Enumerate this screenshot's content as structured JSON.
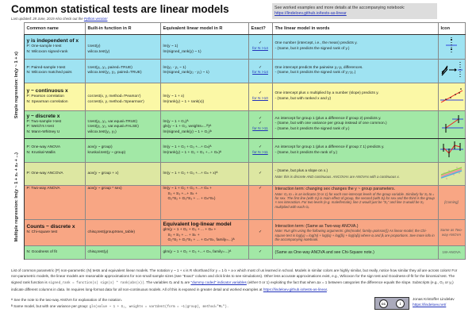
{
  "header": {
    "title": "Common statistical tests are linear models",
    "updated": "Last updated: 28 June, 2019 Also check out the ",
    "python_link": "Python version!"
  },
  "notice": {
    "text": "See worked examples and more details at the accompanying notebook: ",
    "link": "https://lindeloev.github.io/tests-as-linear"
  },
  "columns": [
    "Common name",
    "Built-in function in R",
    "Equivalent linear model in R",
    "Exact?",
    "The linear model in words",
    "Icon"
  ],
  "side_labels": {
    "simple": "Simple regression: lm(y ~ 1 + x)",
    "multiple": "Multiple regression: lm(y ~ 1 + x₁ + x₂ + ...)"
  },
  "rows": [
    {
      "heading": "y is independent of x",
      "names": [
        "P: One-sample t-test",
        "N: Wilcoxon signed-rank"
      ],
      "builtin": [
        "t.test(y)",
        "wilcox.test(y)"
      ],
      "model": [
        "lm(y ~ 1)",
        "lm(signed_rank(y) ~ 1)"
      ],
      "exact": [
        "✓",
        "for N >14"
      ],
      "words": [
        "One number (intercept, i.e., the mean) predicts y.",
        "- (Same, but it predicts the signed rank of y.)"
      ]
    },
    {
      "names": [
        "P: Paired-sample t-test",
        "N: Wilcoxon matched pairs"
      ],
      "builtin": [
        "t.test(y₁, y₂, paired=TRUE)",
        "wilcox.test(y₁, y₂, paired=TRUE)"
      ],
      "model": [
        "lm(y₂ - y₁ ~ 1)",
        "lm(signed_rank(y₂ - y₁) ~ 1)"
      ],
      "exact": [
        "✓",
        "for N >14"
      ],
      "words": [
        "One intercept predicts the pairwise y₂-y₁ differences.",
        "- (Same, but it predicts the signed rank of y₂-y₁.)"
      ]
    },
    {
      "heading": "y ~ continuous x",
      "names": [
        "P: Pearson correlation",
        "N: Spearman correlation"
      ],
      "builtin": [
        "cor.test(x, y, method='Pearson')",
        "cor.test(x, y, method='Spearman')"
      ],
      "model": [
        "lm(y ~ 1 + x)",
        "lm(rank(y) ~ 1 + rank(x))"
      ],
      "exact": [
        "✓",
        "for N >10"
      ],
      "words": [
        "One intercept plus x multiplied by a number (slope) predicts y.",
        "- (Same, but with ranked x and y)"
      ]
    },
    {
      "heading": "y ~ discrete x",
      "names": [
        "P: Two-sample t-test",
        "P: Welch's t-test",
        "N: Mann-Whitney U"
      ],
      "builtin": [
        "t.test(y₁, y₂, var.equal=TRUE)",
        "t.test(y₁, y₂, var.equal=FALSE)",
        "wilcox.test(y₁, y₂)"
      ],
      "model": [
        "lm(y ~ 1 + G₂)ᴬ",
        "gls(y ~ 1 + G₂, weights=...ᴮ)ᴬ",
        "lm(signed_rank(y) ~ 1 + G₂)ᴬ"
      ],
      "exact": [
        "✓",
        "✓",
        "for N >11"
      ],
      "words": [
        "An intercept for group 1 (plus a difference if group 2) predicts y.",
        "- (Same, but with one variance per group instead of one common.)",
        "- (Same, but it predicts the signed rank of y.)"
      ]
    },
    {
      "names": [
        "P: One-way ANOVA",
        "N: Kruskal-Wallis"
      ],
      "builtin": [
        "aov(y ~ group)",
        "kruskal.test(y ~ group)"
      ],
      "model": [
        "lm(y ~ 1 + G₂ + G₃ +...+ Gₙ)ᴬ",
        "lm(rank(y) ~ 1 + G₂ + G₃ +...+ Gₙ)ᴬ"
      ],
      "exact": [
        "✓",
        "for N >11"
      ],
      "words": [
        "An intercept for group 1 (plus a difference if group ≠ 1) predicts y.",
        "- (Same, but it predicts the rank of y.)"
      ]
    },
    {
      "names": [
        "P: One-way ANCOVA"
      ],
      "builtin": [
        "aov(y ~ group + x)"
      ],
      "model": [
        "lm(y ~ 1 + G₂ + G₃ +...+ Gₙ + x)ᴬ"
      ],
      "exact": [
        "✓"
      ],
      "words": [
        "- (Same, but plus a slope on x.)"
      ],
      "note": "Note: this is discrete AND continuous. ANCOVAs are ANOVAs with a continuous x."
    },
    {
      "names": [
        "P: Two-way ANOVA"
      ],
      "builtin": [
        "aov(y ~ group * sex)"
      ],
      "model": [
        "lm(y ~ 1 + G₂ + G₃ +...+ Gₙ +",
        "S₂ + S₃ +...+ Sₖ +",
        "G₂*S₂ + G₃*S₃ + ... + Gₙ*Sₖ)"
      ],
      "exact": [
        "✓"
      ],
      "words": [
        "Interaction term: changing sex changes the y ~ group parameters."
      ],
      "note": "Note: G₂ to ₙ is an indicator (0 or 1) for each non-intercept levels of the group variable. Similarly for S₂ to ₖ for sex. The first line (with Gᵢ) is main effect of group, the second (with Sᵢ) for sex and the third is the group × sex interaction. For two levels (e.g. male/female), line 2 would just be \"S₂\" and line 3 would be S₂ multiplied with each Gᵢ.",
      "icon_text": "[Coming]"
    },
    {
      "heading": "Counts ~ discrete x",
      "names": [
        "N: Chi-square test"
      ],
      "builtin": [
        "chisq.test(groupXsex_table)"
      ],
      "model_heading": "Equivalent log-linear model",
      "model": [
        "glm(y ~ 1 + G₂ + G₃ + ... + Gₙ +",
        "S₂ + S₃ + ... + Sₖ +",
        "G₂*S₂ + G₃*S₃ + ... + Gₙ*Sₖ, family=...)ᴬ"
      ],
      "exact": [
        "✓"
      ],
      "words": [
        "Interaction term: (Same as Two-way ANOVA.)"
      ],
      "note": "Note: Run glm using the following arguments: glm(model, family=poisson()) As linear-model, the Chi-square test is log(yᵢ) = log(N) + log(αᵢ) + log(βⱼ) + log(αᵢβⱼ) where αᵢ and βⱼ are proportions. See more info in the accompanying notebook.",
      "icon_text": "Same as Two-way ANOVA"
    },
    {
      "names": [
        "N: Goodness of fit"
      ],
      "builtin": [
        "chisq.test(y)"
      ],
      "model": [
        "glm(y ~ 1 + G₂ + G₃ +...+ Gₙ, family=...)ᴬ"
      ],
      "exact": [
        "✓"
      ],
      "words": [
        "(Same as One-way ANOVA and see Chi-Square note.)"
      ],
      "icon_text": "1W-ANOVA"
    }
  ],
  "footer": {
    "p1": "List of common parametric (P) non-parametric (N) tests and equivalent linear models. The notation y ~ 1 + x is R shorthand for y = 1·b + a·x which most of us learned in school. Models in similar colors are highly similar, but really, notice how similar they all are across colors! For non-parametric models, the linear models are reasonable approximations for non-small sample sizes (see \"Exact\" column and click links to see simulations). Other less accurate approximations exist, e.g., Wilcoxon for the sign test and Goodness-of-fit for the binomial test. The signed rank function is ",
    "code": "signed_rank = function(x) sign(x) * rank(abs(x))",
    "p2": ". The variables Gᵢ and Sᵢ are ",
    "dummy_link": "\"dummy coded\" indicator variables",
    "p3": " (either 0 or 1) exploiting the fact that when Δx = 1 between categories the difference equals the slope. Subscripts (e.g., G₂ or y₁) indicate different columns in data. lm requires long-format data for all non-continuous models. All of this is exposed in greater detail and worked examples at ",
    "url": "https://lindeloev.github.io/tests-as-linear",
    "p4": ".",
    "fn_a": "ᴬ See the note to the two-way ANOVA for explanation of the notation.",
    "fn_b": "ᴮ Same model, but with one variance per group: ",
    "fn_b_code": "gls(value ~ 1 + G₂, weights = varIdent(form = ~1|group), method=\"ML\").",
    "author": "Jonas Kristoffer Lindeløv",
    "author_url": "https://lindeloev.net/",
    "cc_labels": [
      "cc",
      "i"
    ]
  },
  "colors": {
    "blue": "#9fe3f2",
    "yellow": "#fbf8a6",
    "green": "#a2e8a6",
    "yellowgreen": "#dde7a2",
    "salmon": "#f8a684"
  }
}
